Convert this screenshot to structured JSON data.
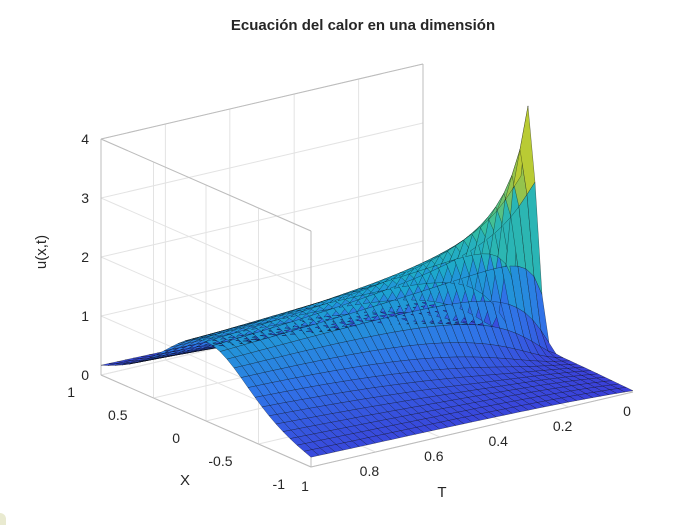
{
  "chart_data": {
    "type": "surface",
    "title": "Ecuación del calor en una dimensión",
    "xlabel": "T",
    "ylabel": "X",
    "zlabel": "u(x,t)",
    "t_range": [
      0,
      1
    ],
    "x_range": [
      -1,
      1
    ],
    "z_range": [
      0,
      4
    ],
    "t_ticks": [
      "0",
      "0.2",
      "0.4",
      "0.6",
      "0.8",
      "1"
    ],
    "x_ticks": [
      "-1",
      "-0.5",
      "0",
      "0.5",
      "1"
    ],
    "z_ticks": [
      "0",
      "1",
      "2",
      "3",
      "4"
    ],
    "peak": {
      "t": 0.05,
      "x": 0,
      "u": 4.0
    },
    "grid": true,
    "colormap": "parula",
    "colors": {
      "low": "#3b3dd9",
      "mid_low": "#2f76e8",
      "mid": "#1ba6d0",
      "mid_high": "#36c0a0",
      "high": "#a7c43c",
      "top": "#f4e11a",
      "edge": "#000000",
      "grid": "#e3e3e3",
      "box": "#bcbcbc"
    }
  }
}
